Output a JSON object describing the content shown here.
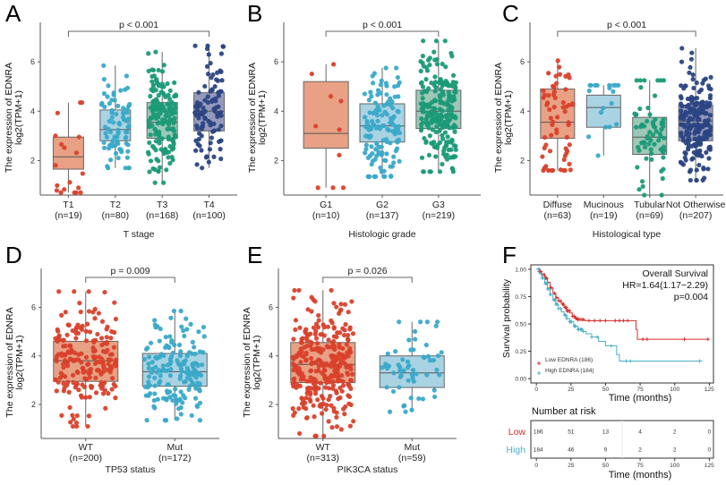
{
  "figure": {
    "colors": {
      "red": "#d9412b",
      "red_fill": "#e8a184",
      "cyan": "#3aa9c9",
      "cyan_fill": "#a9d3e3",
      "green": "#1b9a78",
      "green_fill": "#9cc8b6",
      "navy": "#2b4483",
      "navy_fill": "#9599bb",
      "km_low": "#d62f2f",
      "km_high": "#4bb0c6"
    }
  },
  "chart_data": [
    {
      "panel": "A",
      "type": "box",
      "ylabel": "The expression of EDNRA",
      "ylabel2": "log2(TPM+1)",
      "xlabel": "T stage",
      "yticks": [
        2,
        4,
        6
      ],
      "ylim": [
        0.6,
        7.6
      ],
      "pvalue": "p < 0.001",
      "bracket": [
        0,
        3
      ],
      "categories": [
        {
          "label": "T1",
          "n": "(n=19)",
          "color": "red",
          "q1": 1.65,
          "median": 2.15,
          "q3": 2.95,
          "min": 0.7,
          "max": 4.35,
          "npts": 19
        },
        {
          "label": "T2",
          "n": "(n=80)",
          "color": "cyan",
          "q1": 2.8,
          "median": 3.25,
          "q3": 4.05,
          "min": 1.7,
          "max": 5.85,
          "npts": 80
        },
        {
          "label": "T3",
          "n": "(n=168)",
          "color": "green",
          "q1": 2.9,
          "median": 3.55,
          "q3": 4.35,
          "min": 1.1,
          "max": 6.4,
          "npts": 168
        },
        {
          "label": "T4",
          "n": "(n=100)",
          "color": "navy",
          "q1": 3.2,
          "median": 4.0,
          "q3": 4.75,
          "min": 1.7,
          "max": 6.65,
          "npts": 100
        }
      ]
    },
    {
      "panel": "B",
      "type": "box",
      "ylabel": "The expression of EDNRA",
      "ylabel2": "log2(TPM+1)",
      "xlabel": "Histologic grade",
      "yticks": [
        2,
        4,
        6
      ],
      "ylim": [
        0.6,
        7.6
      ],
      "pvalue": "p < 0.001",
      "bracket": [
        0,
        2
      ],
      "categories": [
        {
          "label": "G1",
          "n": "(n=10)",
          "color": "red",
          "q1": 2.5,
          "median": 3.1,
          "q3": 5.2,
          "min": 0.9,
          "max": 5.9,
          "npts": 10
        },
        {
          "label": "G2",
          "n": "(n=137)",
          "color": "cyan",
          "q1": 2.75,
          "median": 3.4,
          "q3": 4.3,
          "min": 1.35,
          "max": 5.75,
          "npts": 137
        },
        {
          "label": "G3",
          "n": "(n=219)",
          "color": "green",
          "q1": 3.3,
          "median": 4.0,
          "q3": 4.85,
          "min": 1.55,
          "max": 6.85,
          "npts": 219
        }
      ]
    },
    {
      "panel": "C",
      "type": "box",
      "ylabel": "The expression of EDNRA",
      "ylabel2": "log2(TPM+1)",
      "xlabel": "Histological type",
      "yticks": [
        2,
        4,
        6
      ],
      "ylim": [
        0.6,
        7.6
      ],
      "pvalue": "p < 0.001",
      "bracket": [
        0,
        3
      ],
      "categories": [
        {
          "label": "Diffuse",
          "n": "(n=63)",
          "color": "red",
          "q1": 2.9,
          "median": 3.55,
          "q3": 4.9,
          "min": 1.6,
          "max": 6.05,
          "npts": 63
        },
        {
          "label": "Mucinous",
          "n": "(n=19)",
          "color": "cyan",
          "q1": 3.35,
          "median": 4.15,
          "q3": 4.65,
          "min": 2.2,
          "max": 5.05,
          "npts": 19
        },
        {
          "label": "Tubular",
          "n": "(n=69)",
          "color": "green",
          "q1": 2.25,
          "median": 2.95,
          "q3": 3.75,
          "min": 0.6,
          "max": 5.25,
          "npts": 69
        },
        {
          "label": "Not Otherwise",
          "n": "(n=207)",
          "color": "navy",
          "q1": 2.8,
          "median": 3.6,
          "q3": 4.25,
          "min": 1.2,
          "max": 6.55,
          "npts": 207
        }
      ]
    },
    {
      "panel": "D",
      "type": "box",
      "ylabel": "The expression of EDNRA",
      "ylabel2": "log2(TPM+1)",
      "xlabel": "TP53 status",
      "yticks": [
        2,
        4,
        6
      ],
      "ylim": [
        0.6,
        7.6
      ],
      "pvalue": "p = 0.009",
      "bracket": [
        0,
        1
      ],
      "categories": [
        {
          "label": "WT",
          "n": "(n=200)",
          "color": "red",
          "q1": 2.95,
          "median": 3.8,
          "q3": 4.6,
          "min": 1.1,
          "max": 6.65,
          "npts": 200
        },
        {
          "label": "Mut",
          "n": "(n=172)",
          "color": "cyan",
          "q1": 2.75,
          "median": 3.35,
          "q3": 4.1,
          "min": 1.35,
          "max": 5.85,
          "npts": 172
        }
      ]
    },
    {
      "panel": "E",
      "type": "box",
      "ylabel": "The expression of EDNRA",
      "ylabel2": "log2(TPM+1)",
      "xlabel": "PIK3CA status",
      "yticks": [
        2,
        4,
        6
      ],
      "ylim": [
        0.6,
        7.6
      ],
      "pvalue": "p = 0.026",
      "bracket": [
        0,
        1
      ],
      "categories": [
        {
          "label": "WT",
          "n": "(n=313)",
          "color": "red",
          "q1": 2.9,
          "median": 3.65,
          "q3": 4.55,
          "min": 0.7,
          "max": 6.7,
          "npts": 313
        },
        {
          "label": "Mut",
          "n": "(n=59)",
          "color": "cyan",
          "q1": 2.7,
          "median": 3.3,
          "q3": 4.0,
          "min": 1.7,
          "max": 5.4,
          "npts": 59
        }
      ]
    },
    {
      "panel": "F",
      "type": "line",
      "subtype": "kaplan-meier",
      "title": "Overall Survival",
      "hr": "HR=1.64(1.17−2.29)",
      "pvalue": "p=0.004",
      "ylabel": "Survival probability",
      "xlabel": "Time (months)",
      "xticks": [
        0,
        25,
        50,
        75,
        100,
        125
      ],
      "yticks": [
        "0.00",
        "0.25",
        "0.50",
        "0.75",
        "1.00"
      ],
      "ytick_values": [
        0,
        0.25,
        0.5,
        0.75,
        1.0
      ],
      "xlim": [
        -4,
        128
      ],
      "ylim": [
        -0.04,
        1.04
      ],
      "series": [
        {
          "name": "Low EDNRA (186)",
          "color": "km_low",
          "x": [
            0,
            2,
            4,
            6,
            8,
            10,
            12,
            14,
            16,
            18,
            20,
            22,
            24,
            26,
            28,
            30,
            35,
            40,
            50,
            60,
            68,
            72,
            73,
            125
          ],
          "y": [
            1.0,
            0.98,
            0.95,
            0.92,
            0.88,
            0.83,
            0.78,
            0.74,
            0.71,
            0.68,
            0.65,
            0.62,
            0.6,
            0.57,
            0.55,
            0.54,
            0.53,
            0.53,
            0.53,
            0.53,
            0.53,
            0.45,
            0.36,
            0.36
          ],
          "censor_x": [
            30,
            34,
            38,
            42,
            46,
            50,
            57,
            60,
            63,
            66,
            77,
            80,
            107,
            124
          ]
        },
        {
          "name": "High EDNRA (184)",
          "color": "km_high",
          "x": [
            0,
            2,
            4,
            6,
            8,
            10,
            12,
            14,
            16,
            18,
            20,
            22,
            24,
            27,
            30,
            33,
            36,
            40,
            45,
            50,
            55,
            58,
            60,
            120
          ],
          "y": [
            1.0,
            0.96,
            0.92,
            0.87,
            0.82,
            0.77,
            0.72,
            0.68,
            0.64,
            0.61,
            0.58,
            0.55,
            0.52,
            0.48,
            0.45,
            0.43,
            0.41,
            0.38,
            0.34,
            0.3,
            0.3,
            0.22,
            0.16,
            0.16
          ],
          "censor_x": [
            10,
            16,
            22,
            28,
            34,
            40,
            44,
            54,
            65,
            68,
            118
          ]
        }
      ],
      "risk_table": {
        "title": "Number at risk",
        "xlabel": "Time (months)",
        "times": [
          0,
          25,
          50,
          75,
          100,
          125
        ],
        "rows": [
          {
            "label": "Low",
            "color": "km_low",
            "values": [
              "186",
              "51",
              "13",
              "4",
              "2",
              "0"
            ]
          },
          {
            "label": "High",
            "color": "km_high",
            "values": [
              "184",
              "46",
              "9",
              "2",
              "2",
              "0"
            ]
          }
        ]
      }
    }
  ],
  "panels": {
    "A": {
      "letter": "A"
    },
    "B": {
      "letter": "B"
    },
    "C": {
      "letter": "C"
    },
    "D": {
      "letter": "D"
    },
    "E": {
      "letter": "E"
    },
    "F": {
      "letter": "F"
    }
  }
}
